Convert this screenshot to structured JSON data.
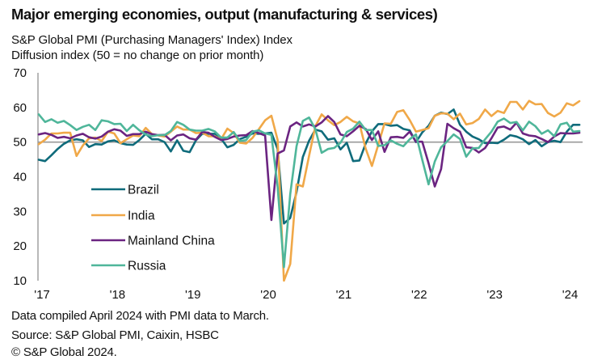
{
  "title": "Major emerging economies, output (manufacturing & services)",
  "subtitle_1": "S&P Global PMI (Purchasing Managers' Index) Index",
  "subtitle_2": "Diffusion index  (50 = no change on prior month)",
  "footnotes": [
    "Data compiled April 2024 with PMI data to March.",
    "Source: S&P Global PMI, Caixin, HSBC",
    "© S&P Global 2024."
  ],
  "chart_data": {
    "type": "line",
    "title": "Major emerging economies, output (manufacturing & services)",
    "xlabel": "",
    "ylabel": "Diffusion index (50 = no change on prior month)",
    "ylim": [
      10,
      70
    ],
    "yticks": [
      10,
      20,
      30,
      40,
      50,
      60,
      70
    ],
    "reference_line": 50,
    "x_start": "2017-01",
    "x_end": "2024-03",
    "frequency": "monthly",
    "xtick_labels": [
      "'17",
      "'18",
      "'19",
      "'20",
      "'21",
      "'22",
      "'23",
      "'24"
    ],
    "legend_position": "center-left",
    "grid": false,
    "series": [
      {
        "name": "Brazil",
        "color": "#0f6b7b",
        "values": [
          44.9,
          44.5,
          46.2,
          48.0,
          49.5,
          50.5,
          50.8,
          50.5,
          48.6,
          49.4,
          49.3,
          50.2,
          50.5,
          49.7,
          49.3,
          49.2,
          50.6,
          52.4,
          50.8,
          50.8,
          50.0,
          47.3,
          50.5,
          47.5,
          47.1,
          50.5,
          52.4,
          52.4,
          52.4,
          51.0,
          48.5,
          49.2,
          50.9,
          51.5,
          52.5,
          52.4,
          52.5,
          52.7,
          48.0,
          26.5,
          28.1,
          35.6,
          45.7,
          50.4,
          53.6,
          53.1,
          50.7,
          51.1,
          47.9,
          49.8,
          44.5,
          44.7,
          49.6,
          53.1,
          55.2,
          55.2,
          54.7,
          54.9,
          53.8,
          53.4,
          50.0,
          52.8,
          54.7,
          57.6,
          58.5,
          58.1,
          59.4,
          55.0,
          53.0,
          51.6,
          50.8,
          49.7,
          49.8,
          49.7,
          50.7,
          52.0,
          51.6,
          50.8,
          49.4,
          50.6,
          48.8,
          50.0,
          50.4,
          50.0,
          53.0,
          55.0,
          55.0
        ]
      },
      {
        "name": "India",
        "color": "#f0a848",
        "values": [
          49.4,
          50.7,
          52.5,
          52.5,
          52.7,
          52.7,
          46.0,
          49.0,
          51.1,
          51.3,
          50.3,
          53.0,
          52.5,
          49.7,
          50.8,
          51.9,
          51.7,
          54.1,
          52.3,
          51.9,
          51.6,
          53.0,
          54.5,
          53.6,
          53.6,
          52.6,
          52.7,
          51.7,
          51.7,
          50.8,
          53.9,
          52.6,
          49.8,
          49.6,
          51.2,
          53.7,
          56.3,
          57.6,
          50.6,
          7.2,
          14.8,
          37.8,
          37.2,
          46.0,
          54.6,
          58.0,
          56.3,
          54.9,
          55.8,
          57.3,
          56.0,
          55.4,
          48.1,
          43.1,
          49.2,
          55.4,
          55.3,
          58.7,
          59.2,
          56.4,
          53.0,
          53.5,
          54.0,
          57.6,
          58.3,
          58.2,
          56.6,
          58.2,
          55.1,
          55.5,
          56.7,
          59.4,
          57.5,
          59.0,
          58.4,
          61.6,
          61.6,
          59.4,
          61.9,
          60.9,
          61.0,
          58.4,
          57.4,
          58.5,
          61.2,
          60.6,
          61.8
        ]
      },
      {
        "name": "Mainland China",
        "color": "#6b2481",
        "values": [
          52.2,
          52.6,
          52.1,
          51.2,
          51.5,
          51.1,
          51.9,
          52.4,
          51.4,
          51.0,
          51.6,
          53.0,
          53.7,
          53.3,
          51.8,
          52.3,
          52.3,
          53.0,
          52.3,
          52.0,
          52.1,
          50.5,
          51.9,
          52.2,
          51.1,
          50.7,
          52.9,
          52.7,
          51.5,
          50.6,
          50.9,
          51.6,
          51.9,
          52.0,
          53.2,
          52.6,
          51.9,
          27.5,
          46.7,
          47.6,
          54.5,
          55.7,
          54.5,
          55.1,
          54.5,
          55.7,
          57.5,
          55.8,
          52.2,
          51.7,
          53.1,
          54.7,
          53.8,
          50.6,
          53.1,
          47.2,
          51.4,
          51.5,
          51.2,
          53.0,
          50.1,
          50.1,
          43.9,
          37.2,
          42.2,
          55.3,
          54.0,
          53.0,
          48.5,
          48.3,
          47.0,
          48.3,
          51.1,
          54.2,
          54.5,
          53.6,
          55.6,
          52.5,
          51.9,
          51.7,
          50.9,
          50.0,
          51.6,
          52.6,
          52.5,
          52.5,
          52.7
        ]
      },
      {
        "name": "Russia",
        "color": "#4fb69a",
        "values": [
          58.0,
          55.8,
          56.6,
          55.6,
          56.1,
          54.9,
          53.5,
          54.4,
          55.0,
          53.5,
          56.3,
          56.0,
          55.2,
          55.3,
          53.2,
          55.0,
          53.4,
          52.2,
          51.7,
          52.0,
          52.0,
          53.2,
          55.8,
          55.0,
          53.6,
          53.3,
          53.3,
          53.8,
          53.1,
          51.3,
          51.3,
          52.9,
          50.3,
          50.6,
          53.0,
          53.4,
          52.5,
          52.1,
          37.0,
          13.9,
          35.0,
          48.8,
          56.1,
          57.1,
          53.7,
          46.9,
          48.0,
          48.3,
          49.8,
          52.9,
          53.9,
          55.9,
          53.5,
          53.5,
          48.9,
          49.1,
          50.5,
          49.5,
          48.8,
          50.8,
          52.2,
          44.9,
          37.8,
          44.4,
          48.5,
          50.3,
          52.2,
          50.9,
          45.8,
          48.2,
          48.3,
          50.8,
          53.0,
          55.9,
          56.8,
          55.5,
          55.8,
          53.4,
          55.9,
          54.6,
          52.4,
          53.4,
          51.7,
          55.1,
          55.6,
          53.0,
          53.2
        ]
      }
    ]
  },
  "legend": [
    "Brazil",
    "India",
    "Mainland China",
    "Russia"
  ]
}
